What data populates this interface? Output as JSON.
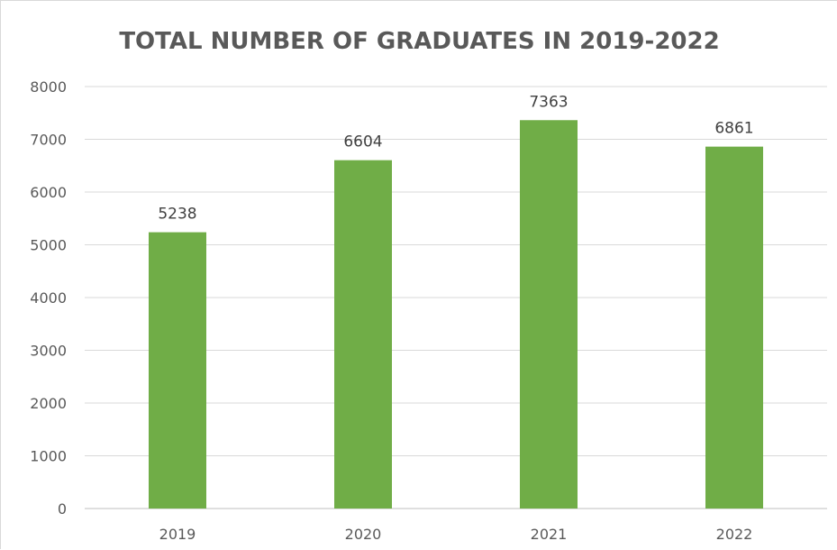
{
  "chart_data": {
    "type": "bar",
    "title": "TOTAL NUMBER OF GRADUATES IN 2019-2022",
    "xlabel": "",
    "ylabel": "",
    "categories": [
      "2019",
      "2020",
      "2021",
      "2022"
    ],
    "values": [
      5238,
      6604,
      7363,
      6861
    ],
    "data_labels": [
      "5238",
      "6604",
      "7363",
      "6861"
    ],
    "ylim": [
      0,
      8000
    ],
    "yticks": [
      0,
      1000,
      2000,
      3000,
      4000,
      5000,
      6000,
      7000,
      8000
    ],
    "ytick_labels": [
      "0",
      "1000",
      "2000",
      "3000",
      "4000",
      "5000",
      "6000",
      "7000",
      "8000"
    ],
    "grid": true,
    "legend": "none",
    "bar_color": "#70ad47"
  }
}
